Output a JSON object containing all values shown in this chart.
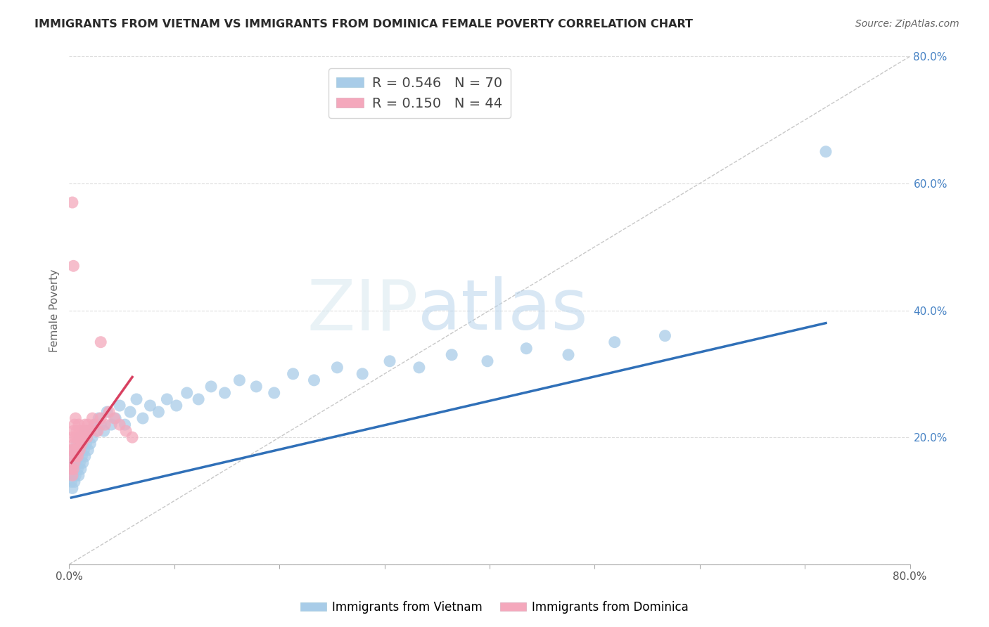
{
  "title": "IMMIGRANTS FROM VIETNAM VS IMMIGRANTS FROM DOMINICA FEMALE POVERTY CORRELATION CHART",
  "source": "Source: ZipAtlas.com",
  "ylabel": "Female Poverty",
  "xlim": [
    0.0,
    0.8
  ],
  "ylim": [
    0.0,
    0.8
  ],
  "vietnam_R": 0.546,
  "vietnam_N": 70,
  "dominica_R": 0.15,
  "dominica_N": 44,
  "vietnam_color": "#A8CCE8",
  "dominica_color": "#F4A8BC",
  "vietnam_line_color": "#3070B8",
  "dominica_line_color": "#D84060",
  "diagonal_color": "#C8C8C8",
  "ytick_vals": [
    0.0,
    0.2,
    0.4,
    0.6,
    0.8
  ],
  "ytick_labels": [
    "",
    "20.0%",
    "40.0%",
    "60.0%",
    "80.0%"
  ],
  "xtick_vals": [
    0.0,
    0.1,
    0.2,
    0.3,
    0.4,
    0.5,
    0.6,
    0.7,
    0.8
  ],
  "xtick_labels": [
    "0.0%",
    "",
    "",
    "",
    "",
    "",
    "",
    "",
    "80.0%"
  ],
  "vietnam_x": [
    0.002,
    0.003,
    0.003,
    0.004,
    0.004,
    0.005,
    0.005,
    0.005,
    0.006,
    0.006,
    0.007,
    0.007,
    0.008,
    0.008,
    0.009,
    0.009,
    0.01,
    0.01,
    0.011,
    0.011,
    0.012,
    0.012,
    0.013,
    0.013,
    0.014,
    0.015,
    0.015,
    0.016,
    0.017,
    0.018,
    0.019,
    0.02,
    0.022,
    0.024,
    0.026,
    0.028,
    0.03,
    0.033,
    0.036,
    0.04,
    0.044,
    0.048,
    0.053,
    0.058,
    0.064,
    0.07,
    0.077,
    0.085,
    0.093,
    0.102,
    0.112,
    0.123,
    0.135,
    0.148,
    0.162,
    0.178,
    0.195,
    0.213,
    0.233,
    0.255,
    0.279,
    0.305,
    0.333,
    0.364,
    0.398,
    0.435,
    0.475,
    0.519,
    0.567,
    0.72
  ],
  "vietnam_y": [
    0.13,
    0.15,
    0.12,
    0.16,
    0.14,
    0.17,
    0.13,
    0.15,
    0.18,
    0.14,
    0.16,
    0.19,
    0.15,
    0.17,
    0.14,
    0.18,
    0.16,
    0.2,
    0.15,
    0.18,
    0.17,
    0.19,
    0.16,
    0.2,
    0.18,
    0.17,
    0.21,
    0.19,
    0.2,
    0.18,
    0.21,
    0.19,
    0.2,
    0.22,
    0.21,
    0.23,
    0.22,
    0.21,
    0.24,
    0.22,
    0.23,
    0.25,
    0.22,
    0.24,
    0.26,
    0.23,
    0.25,
    0.24,
    0.26,
    0.25,
    0.27,
    0.26,
    0.28,
    0.27,
    0.29,
    0.28,
    0.27,
    0.3,
    0.29,
    0.31,
    0.3,
    0.32,
    0.31,
    0.33,
    0.32,
    0.34,
    0.33,
    0.35,
    0.36,
    0.65
  ],
  "dominica_x": [
    0.002,
    0.002,
    0.003,
    0.003,
    0.003,
    0.004,
    0.004,
    0.004,
    0.005,
    0.005,
    0.005,
    0.006,
    0.006,
    0.006,
    0.007,
    0.007,
    0.008,
    0.008,
    0.009,
    0.009,
    0.01,
    0.01,
    0.011,
    0.012,
    0.013,
    0.014,
    0.015,
    0.016,
    0.017,
    0.018,
    0.02,
    0.022,
    0.024,
    0.027,
    0.03,
    0.034,
    0.038,
    0.043,
    0.048,
    0.054,
    0.06,
    0.03,
    0.003,
    0.004
  ],
  "dominica_y": [
    0.15,
    0.18,
    0.14,
    0.17,
    0.2,
    0.15,
    0.18,
    0.21,
    0.16,
    0.19,
    0.22,
    0.17,
    0.2,
    0.23,
    0.18,
    0.21,
    0.17,
    0.2,
    0.19,
    0.22,
    0.18,
    0.21,
    0.2,
    0.19,
    0.21,
    0.2,
    0.22,
    0.21,
    0.2,
    0.22,
    0.21,
    0.23,
    0.22,
    0.21,
    0.23,
    0.22,
    0.24,
    0.23,
    0.22,
    0.21,
    0.2,
    0.35,
    0.57,
    0.47
  ],
  "vietnam_line_x": [
    0.002,
    0.72
  ],
  "vietnam_line_y": [
    0.105,
    0.38
  ],
  "dominica_line_x": [
    0.002,
    0.06
  ],
  "dominica_line_y": [
    0.16,
    0.295
  ]
}
